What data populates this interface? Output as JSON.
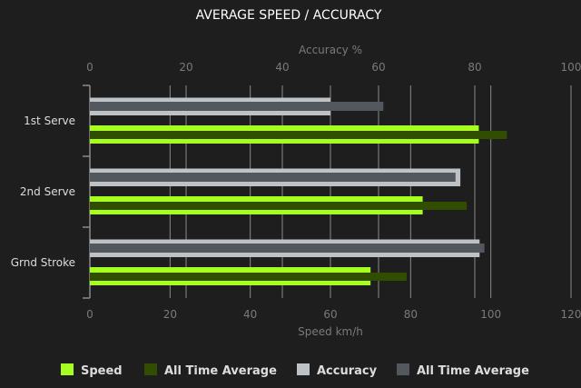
{
  "chart_data": {
    "type": "bar",
    "orientation": "horizontal",
    "title": "AVERAGE SPEED / ACCURACY",
    "categories": [
      "1st Serve",
      "2nd Serve",
      "Grnd Stroke"
    ],
    "top_axis": {
      "label": "Accuracy %",
      "range": [
        0,
        100
      ],
      "ticks": [
        0,
        20,
        40,
        60,
        80,
        100
      ]
    },
    "bottom_axis": {
      "label": "Speed km/h",
      "range": [
        0,
        120
      ],
      "ticks": [
        0,
        20,
        40,
        60,
        80,
        100,
        120
      ]
    },
    "series": [
      {
        "name": "Speed",
        "axis": "bottom",
        "color": "#a6ff1e",
        "values": [
          97,
          83,
          70
        ]
      },
      {
        "name": "All Time Average",
        "axis": "bottom",
        "color": "#304d00",
        "values": [
          104,
          94,
          79
        ]
      },
      {
        "name": "Accuracy",
        "axis": "top",
        "color": "#bfc2c5",
        "values": [
          50,
          77,
          81
        ]
      },
      {
        "name": "All Time Average",
        "axis": "top",
        "color": "#53585f",
        "values": [
          61,
          76,
          82
        ]
      }
    ],
    "grid": true,
    "legend": "bottom"
  }
}
